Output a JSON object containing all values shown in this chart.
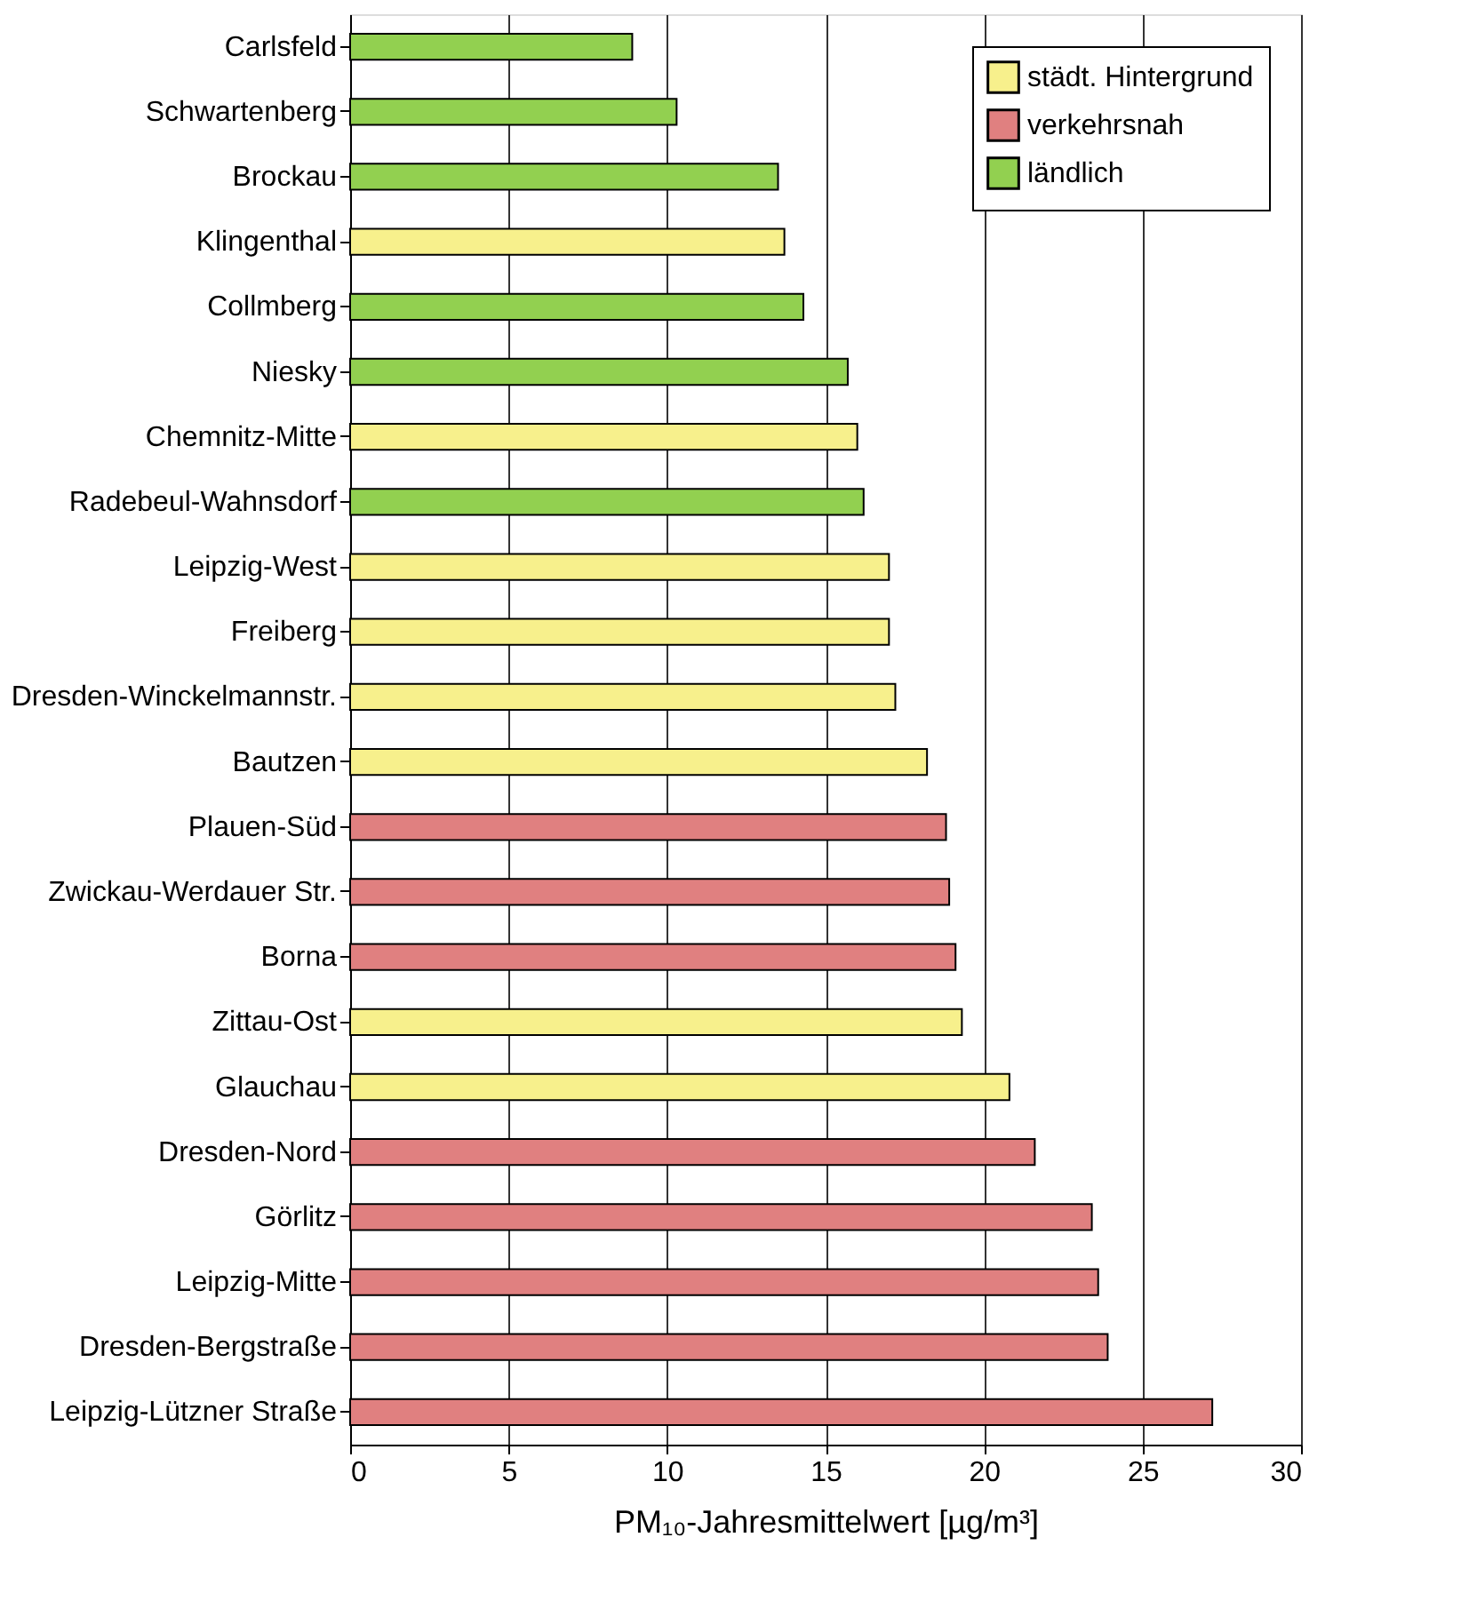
{
  "chart_data": {
    "type": "bar",
    "orientation": "horizontal",
    "xlabel": "PM₁₀-Jahresmittelwert [µg/m³]",
    "categories": [
      "Carlsfeld",
      "Schwartenberg",
      "Brockau",
      "Klingenthal",
      "Collmberg",
      "Niesky",
      "Chemnitz-Mitte",
      "Radebeul-Wahnsdorf",
      "Leipzig-West",
      "Freiberg",
      "Dresden-Winckelmannstr.",
      "Bautzen",
      "Plauen-Süd",
      "Zwickau-Werdauer Str.",
      "Borna",
      "Zittau-Ost",
      "Glauchau",
      "Dresden-Nord",
      "Görlitz",
      "Leipzig-Mitte",
      "Dresden-Bergstraße",
      "Leipzig-Lützner Straße"
    ],
    "series": [
      {
        "name": "städt. Hintergrund",
        "color": "#f7f08c",
        "values": [
          null,
          null,
          null,
          13.7,
          null,
          null,
          16.0,
          null,
          17.0,
          17.0,
          17.2,
          18.2,
          null,
          null,
          null,
          19.3,
          20.8,
          null,
          null,
          null,
          null,
          null
        ]
      },
      {
        "name": "verkehrsnah",
        "color": "#e08080",
        "values": [
          null,
          null,
          null,
          null,
          null,
          null,
          null,
          null,
          null,
          null,
          null,
          null,
          18.8,
          18.9,
          19.1,
          null,
          null,
          21.6,
          23.4,
          23.6,
          23.9,
          27.2
        ]
      },
      {
        "name": "ländlich",
        "color": "#92d050",
        "values": [
          8.9,
          10.3,
          13.5,
          null,
          14.3,
          15.7,
          null,
          16.2,
          null,
          null,
          null,
          null,
          null,
          null,
          null,
          null,
          null,
          null,
          null,
          null,
          null,
          null
        ]
      }
    ],
    "xlim": [
      0,
      30
    ],
    "xticks": [
      0,
      5,
      10,
      15,
      20,
      25,
      30
    ],
    "grid": "x",
    "legend": "top right"
  }
}
